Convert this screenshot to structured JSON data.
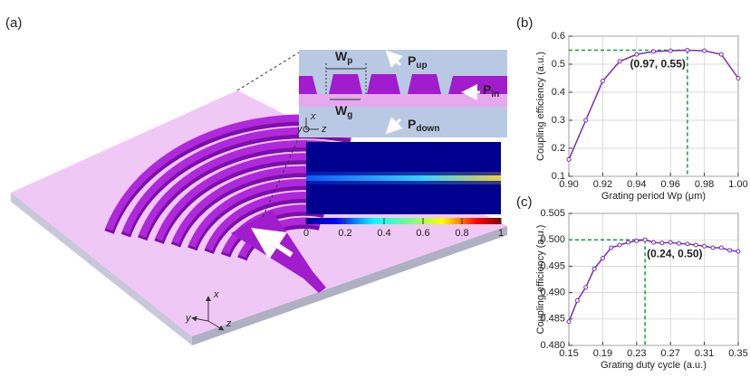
{
  "panels": [
    "(a)",
    "(b)",
    "(c)"
  ],
  "diagram": {
    "labels": {
      "wp": {
        "main": "W",
        "sub": "p"
      },
      "wg": {
        "main": "W",
        "sub": "g"
      },
      "pup": {
        "main": "P",
        "sub": "up"
      },
      "pin": {
        "main": "P",
        "sub": "in"
      },
      "pdown": {
        "main": "P",
        "sub": "down"
      }
    },
    "axes_inset": [
      "x",
      "y",
      "z"
    ],
    "axes_main": [
      "x",
      "y",
      "z"
    ],
    "colorbar_ticks": [
      0,
      0.2,
      0.4,
      0.6,
      0.8,
      1
    ]
  },
  "chart_data": [
    {
      "type": "line",
      "panel": 1,
      "xlabel": "Grating period Wp (μm)",
      "ylabel": "Coupling efficiency (a.u.)",
      "x": [
        0.9,
        0.91,
        0.92,
        0.93,
        0.94,
        0.95,
        0.96,
        0.97,
        0.98,
        0.99,
        1.0
      ],
      "series": [
        {
          "color": "#7a2fb0",
          "values": [
            0.16,
            0.3,
            0.44,
            0.51,
            0.535,
            0.545,
            0.548,
            0.55,
            0.548,
            0.535,
            0.45
          ]
        }
      ],
      "xlim": [
        0.9,
        1.0
      ],
      "xticks": [
        {
          "value": 0.9,
          "label": "0.90"
        },
        0.92,
        0.94,
        0.96,
        0.98,
        {
          "value": 1,
          "label": "1.00"
        }
      ],
      "ylim": [
        0.1,
        0.6
      ],
      "yticks": [
        0.1,
        0.2,
        0.3,
        0.4,
        0.5,
        0.6
      ],
      "grid": true,
      "highlight": {
        "x": 0.97,
        "y": 0.55,
        "color": "#1a9a3a"
      },
      "annotation": "(0.97, 0.55)"
    },
    {
      "type": "line",
      "panel": 2,
      "xlabel": "Grating duty cycle (a.u.)",
      "ylabel": "Coupling efficiency (a.u.)",
      "x": [
        0.15,
        0.16,
        0.17,
        0.18,
        0.19,
        0.2,
        0.21,
        0.22,
        0.23,
        0.24,
        0.25,
        0.26,
        0.27,
        0.28,
        0.29,
        0.3,
        0.31,
        0.32,
        0.33,
        0.34,
        0.35
      ],
      "series": [
        {
          "color": "#7a2fb0",
          "values": [
            0.4845,
            0.4885,
            0.491,
            0.4945,
            0.4965,
            0.4985,
            0.499,
            0.4995,
            0.4998,
            0.5,
            0.4995,
            0.4994,
            0.4995,
            0.4993,
            0.4992,
            0.499,
            0.4988,
            0.4985,
            0.4985,
            0.498,
            0.4978
          ]
        }
      ],
      "xlim": [
        0.15,
        0.35
      ],
      "xticks": [
        0.15,
        0.19,
        0.23,
        0.27,
        0.31,
        0.35
      ],
      "ylim": [
        0.48,
        0.505
      ],
      "yticks": [
        {
          "value": 0.48,
          "label": "0.480"
        },
        0.485,
        {
          "value": 0.49,
          "label": "0.490"
        },
        0.495,
        {
          "value": 0.5,
          "label": "0.500"
        },
        0.505
      ],
      "grid": true,
      "highlight": {
        "x": 0.24,
        "y": 0.5,
        "color": "#1a9a3a"
      },
      "annotation": "(0.24, 0.50)"
    }
  ]
}
